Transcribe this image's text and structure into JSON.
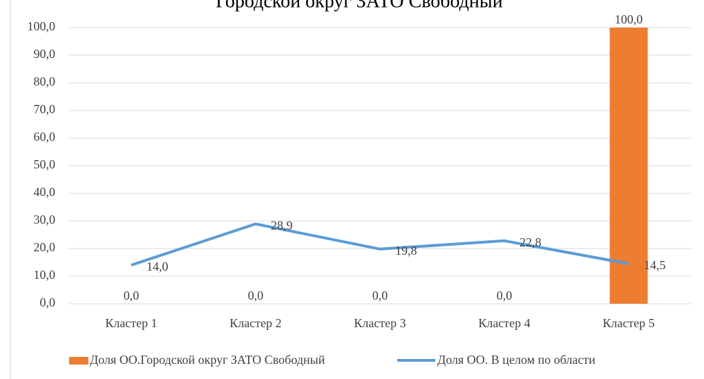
{
  "chart_data": {
    "type": "bar",
    "title": "Городской округ ЗАТО Свободный",
    "categories": [
      "Кластер 1",
      "Кластер 2",
      "Кластер 3",
      "Кластер 4",
      "Кластер 5"
    ],
    "series": [
      {
        "name": "Доля ОО.Городской округ ЗАТО Свободный",
        "type": "bar",
        "color": "#ed7d31",
        "values": [
          0,
          0,
          0,
          0,
          100
        ],
        "value_labels": [
          "0,0",
          "0,0",
          "0,0",
          "0,0",
          "100,0"
        ]
      },
      {
        "name": "Доля ОО. В целом по области",
        "type": "line",
        "color": "#5b9bd5",
        "values": [
          14,
          28.9,
          19.8,
          22.8,
          14.5
        ],
        "value_labels": [
          "14,0",
          "28,9",
          "19,8",
          "22,8",
          "14,5"
        ]
      }
    ],
    "ylim": [
      0,
      100
    ],
    "yticks": [
      {
        "value": 0,
        "label": "0,0"
      },
      {
        "value": 10,
        "label": "10,0"
      },
      {
        "value": 20,
        "label": "20,0"
      },
      {
        "value": 30,
        "label": "30,0"
      },
      {
        "value": 40,
        "label": "40,0"
      },
      {
        "value": 50,
        "label": "50,0"
      },
      {
        "value": 60,
        "label": "60,0"
      },
      {
        "value": 70,
        "label": "70,0"
      },
      {
        "value": 80,
        "label": "80,0"
      },
      {
        "value": 90,
        "label": "90,0"
      },
      {
        "value": 100,
        "label": "100,0"
      }
    ],
    "grid": true,
    "legend": "bottom"
  }
}
